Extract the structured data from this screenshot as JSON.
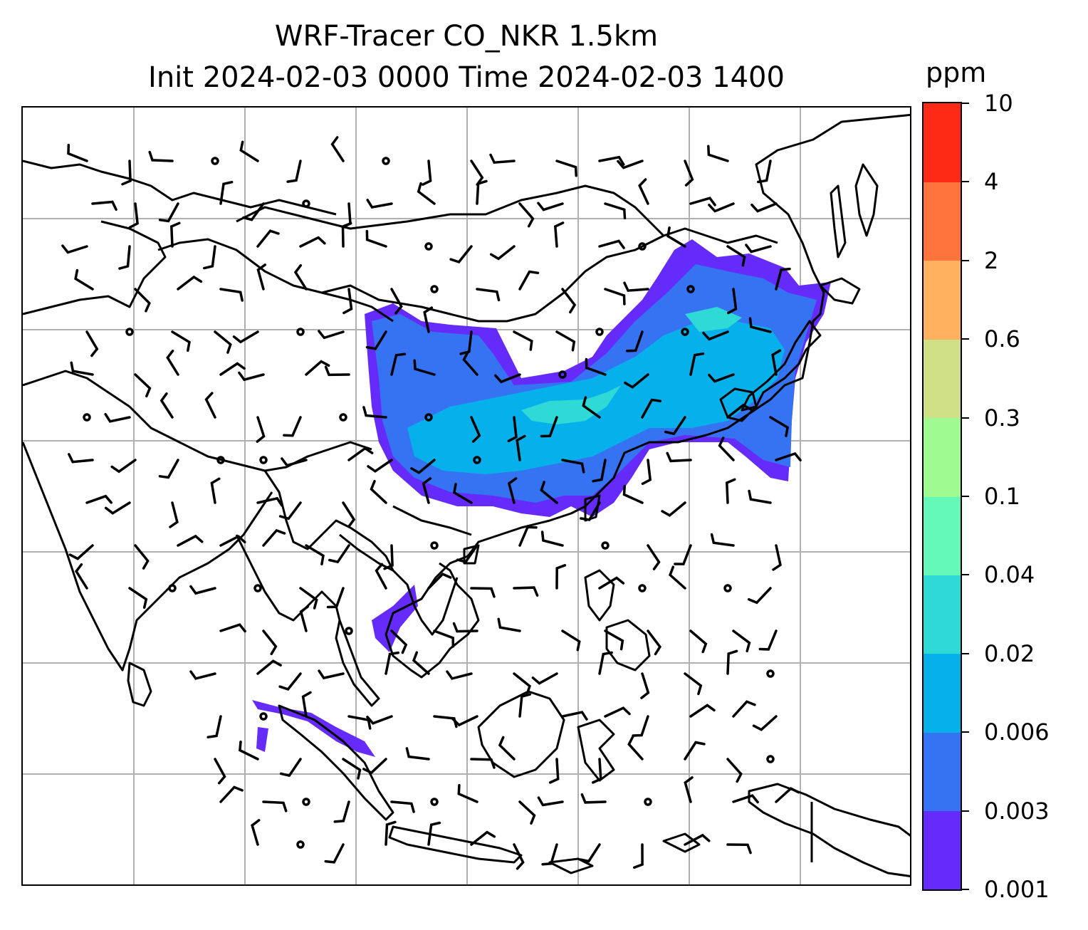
{
  "title": {
    "line1": "WRF-Tracer CO_NKR 1.5km",
    "line2": "Init 2024-02-03 0000 Time 2024-02-03 1400"
  },
  "colorbar": {
    "unit": "ppm",
    "labels": [
      "0.001",
      "0.003",
      "0.006",
      "0.02",
      "0.04",
      "0.1",
      "0.3",
      "0.6",
      "2",
      "4",
      "10"
    ],
    "colors": [
      "#652bfb",
      "#3573f2",
      "#06b0ea",
      "#2ed9d6",
      "#64f9b9",
      "#9ffa91",
      "#cfe086",
      "#ffb05e",
      "#ff733c",
      "#ff2a15"
    ]
  },
  "map": {
    "grid": "on",
    "coastline_color": "#000000",
    "wind_barb_color": "#000000"
  }
}
